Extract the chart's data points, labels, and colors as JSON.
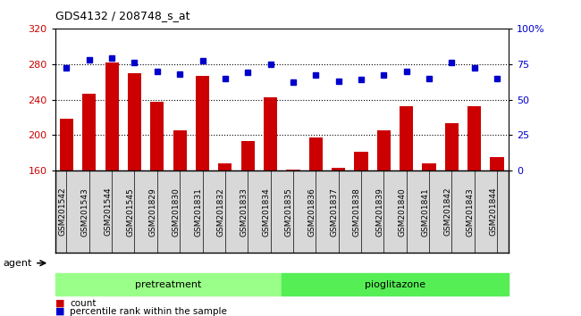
{
  "title": "GDS4132 / 208748_s_at",
  "categories": [
    "GSM201542",
    "GSM201543",
    "GSM201544",
    "GSM201545",
    "GSM201829",
    "GSM201830",
    "GSM201831",
    "GSM201832",
    "GSM201833",
    "GSM201834",
    "GSM201835",
    "GSM201836",
    "GSM201837",
    "GSM201838",
    "GSM201839",
    "GSM201840",
    "GSM201841",
    "GSM201842",
    "GSM201843",
    "GSM201844"
  ],
  "count_values": [
    218,
    247,
    282,
    270,
    238,
    205,
    267,
    168,
    193,
    243,
    161,
    197,
    163,
    181,
    205,
    232,
    168,
    213,
    232,
    175
  ],
  "percentile_values": [
    72,
    78,
    79,
    76,
    70,
    68,
    77,
    65,
    69,
    75,
    62,
    67,
    63,
    64,
    67,
    70,
    65,
    76,
    72,
    65
  ],
  "ylim_left": [
    160,
    320
  ],
  "ylim_right": [
    0,
    100
  ],
  "yticks_left": [
    160,
    200,
    240,
    280,
    320
  ],
  "yticks_right": [
    0,
    25,
    50,
    75,
    100
  ],
  "ytick_labels_right": [
    "0",
    "25",
    "50",
    "75",
    "100%"
  ],
  "bar_color": "#cc0000",
  "dot_color": "#0000cc",
  "pretreatment_color": "#99ff88",
  "pioglitazone_color": "#55ee55",
  "agent_label": "agent",
  "pretreatment_label": "pretreatment",
  "pioglitazone_label": "pioglitazone",
  "legend_count_label": "count",
  "legend_percentile_label": "percentile rank within the sample",
  "bg_color": "#d8d8d8",
  "n_pretreatment": 10,
  "n_pioglitazone": 10
}
